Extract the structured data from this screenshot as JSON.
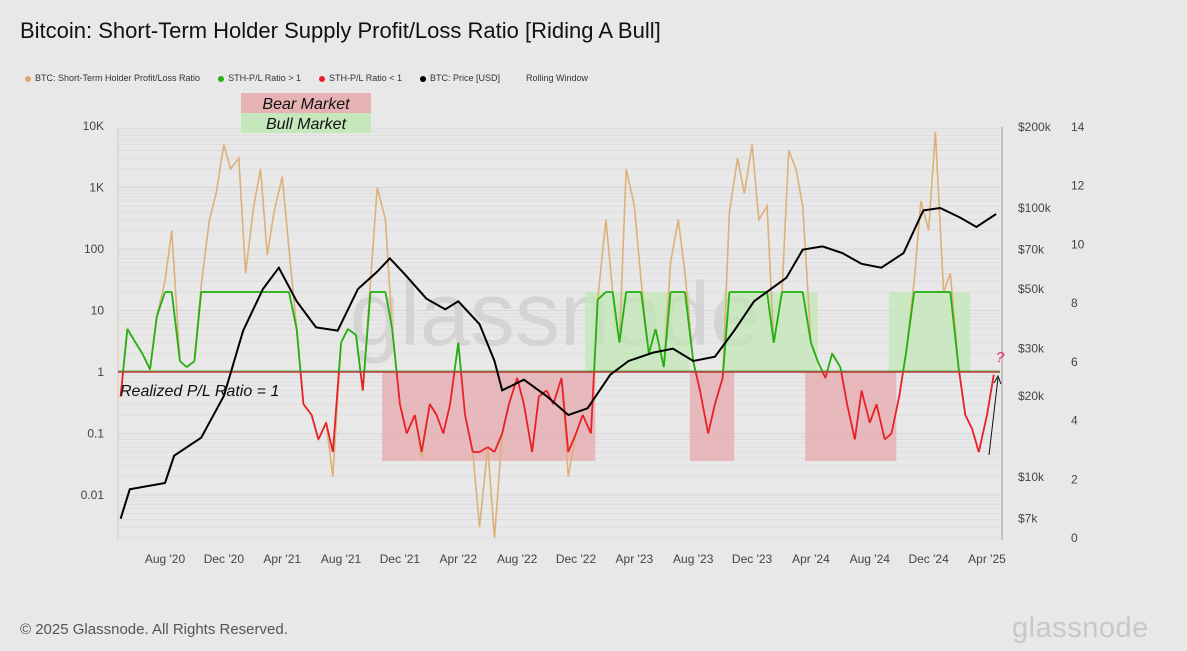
{
  "title": "Bitcoin: Short-Term Holder Supply Profit/Loss Ratio [Riding A Bull]",
  "legend": [
    {
      "label": "BTC: Short-Term Holder Profit/Loss Ratio",
      "color": "#d9a86c"
    },
    {
      "label": "STH-P/L Ratio > 1",
      "color": "#22b00f"
    },
    {
      "label": "STH-P/L Ratio < 1",
      "color": "#e8202a"
    },
    {
      "label": "BTC: Price [USD]",
      "color": "#000000"
    },
    {
      "label": "Rolling Window",
      "color": ""
    }
  ],
  "annotations": {
    "bear_label": "Bear Market",
    "bull_label": "Bull Market",
    "ratio_line_label": "Realized P/L Ratio = 1",
    "question": "?",
    "watermark": "glassnode"
  },
  "footer": "© 2025 Glassnode. All Rights Reserved.",
  "brand": "glassnode",
  "chart_data": {
    "type": "line",
    "title": "Bitcoin: Short-Term Holder Supply Profit/Loss Ratio [Riding A Bull]",
    "left_axis": {
      "scale": "log",
      "ticks": [
        "10K",
        "1K",
        "100",
        "10",
        "1",
        "0.1",
        "0.01"
      ],
      "tick_values": [
        10000,
        1000,
        100,
        10,
        1,
        0.1,
        0.01
      ]
    },
    "price_axis": {
      "scale": "log",
      "ticks": [
        "$200k",
        "$100k",
        "$70k",
        "$50k",
        "$30k",
        "$20k",
        "$10k",
        "$7k"
      ],
      "tick_values": [
        200000,
        100000,
        70000,
        50000,
        30000,
        20000,
        10000,
        7000
      ]
    },
    "right_axis": {
      "ticks": [
        "14",
        "12",
        "10",
        "8",
        "6",
        "4",
        "2",
        "0"
      ],
      "tick_values": [
        14,
        12,
        10,
        8,
        6,
        4,
        2,
        0
      ]
    },
    "x_ticks": [
      "Aug '20",
      "Dec '20",
      "Apr '21",
      "Aug '21",
      "Dec '21",
      "Apr '22",
      "Aug '22",
      "Dec '22",
      "Apr '23",
      "Aug '23",
      "Dec '23",
      "Apr '24",
      "Aug '24",
      "Dec '24",
      "Apr '25"
    ],
    "x_tick_dates": [
      "2020-08-01",
      "2020-12-01",
      "2021-04-01",
      "2021-08-01",
      "2021-12-01",
      "2022-04-01",
      "2022-08-01",
      "2022-12-01",
      "2023-04-01",
      "2023-08-01",
      "2023-12-01",
      "2024-04-01",
      "2024-08-01",
      "2024-12-01",
      "2025-04-01"
    ],
    "reference_line": {
      "value": 1,
      "label": "Realized P/L Ratio = 1"
    },
    "clip_range": [
      0.05,
      20
    ],
    "bear_periods": [
      [
        "2021-10-25",
        "2023-01-10"
      ],
      [
        "2023-07-25",
        "2023-10-25"
      ],
      [
        "2024-03-20",
        "2024-09-25"
      ]
    ],
    "bull_periods": [
      [
        "2022-12-20",
        "2023-07-25"
      ],
      [
        "2023-10-01",
        "2024-04-15"
      ],
      [
        "2024-09-10",
        "2025-02-25"
      ]
    ],
    "ratio": {
      "name": "BTC: Short-Term Holder Profit/Loss Ratio",
      "dates": [
        "2020-05-01",
        "2020-05-15",
        "2020-06-01",
        "2020-06-15",
        "2020-07-01",
        "2020-07-15",
        "2020-08-01",
        "2020-08-15",
        "2020-09-01",
        "2020-09-15",
        "2020-10-01",
        "2020-10-15",
        "2020-11-01",
        "2020-11-15",
        "2020-12-01",
        "2020-12-15",
        "2021-01-01",
        "2021-01-15",
        "2021-02-01",
        "2021-02-15",
        "2021-03-01",
        "2021-03-15",
        "2021-04-01",
        "2021-04-15",
        "2021-05-01",
        "2021-05-15",
        "2021-06-01",
        "2021-06-15",
        "2021-07-01",
        "2021-07-15",
        "2021-08-01",
        "2021-08-15",
        "2021-09-01",
        "2021-09-15",
        "2021-10-01",
        "2021-10-15",
        "2021-11-01",
        "2021-11-15",
        "2021-12-01",
        "2021-12-15",
        "2022-01-01",
        "2022-01-15",
        "2022-02-01",
        "2022-02-15",
        "2022-03-01",
        "2022-03-15",
        "2022-04-01",
        "2022-04-15",
        "2022-05-01",
        "2022-05-15",
        "2022-06-01",
        "2022-06-15",
        "2022-07-01",
        "2022-07-15",
        "2022-08-01",
        "2022-08-15",
        "2022-09-01",
        "2022-09-15",
        "2022-10-01",
        "2022-10-15",
        "2022-11-01",
        "2022-11-15",
        "2022-12-01",
        "2022-12-15",
        "2023-01-01",
        "2023-01-15",
        "2023-02-01",
        "2023-02-15",
        "2023-03-01",
        "2023-03-15",
        "2023-04-01",
        "2023-04-15",
        "2023-05-01",
        "2023-05-15",
        "2023-06-01",
        "2023-06-15",
        "2023-07-01",
        "2023-07-15",
        "2023-08-01",
        "2023-08-15",
        "2023-09-01",
        "2023-09-15",
        "2023-10-01",
        "2023-10-15",
        "2023-11-01",
        "2023-11-15",
        "2023-12-01",
        "2023-12-15",
        "2024-01-01",
        "2024-01-15",
        "2024-02-01",
        "2024-02-15",
        "2024-03-01",
        "2024-03-15",
        "2024-04-01",
        "2024-04-15",
        "2024-05-01",
        "2024-05-15",
        "2024-06-01",
        "2024-06-15",
        "2024-07-01",
        "2024-07-15",
        "2024-08-01",
        "2024-08-15",
        "2024-09-01",
        "2024-09-15",
        "2024-10-01",
        "2024-10-15",
        "2024-11-01",
        "2024-11-15",
        "2024-12-01",
        "2024-12-15",
        "2025-01-01",
        "2025-01-15",
        "2025-02-01",
        "2025-02-15",
        "2025-03-01",
        "2025-03-15",
        "2025-04-01",
        "2025-04-15"
      ],
      "values": [
        0.4,
        5,
        3,
        2,
        1.1,
        8,
        30,
        200,
        1.5,
        1.2,
        1.5,
        25,
        300,
        800,
        5000,
        2000,
        3000,
        40,
        500,
        2000,
        80,
        400,
        1500,
        100,
        5,
        0.3,
        0.2,
        0.08,
        0.15,
        0.02,
        3,
        5,
        4,
        0.5,
        30,
        1000,
        300,
        5,
        0.3,
        0.1,
        0.2,
        0.04,
        0.3,
        0.2,
        0.1,
        0.3,
        3,
        0.2,
        0.05,
        0.003,
        0.06,
        0.002,
        0.1,
        0.3,
        0.8,
        0.3,
        0.05,
        0.4,
        0.5,
        0.3,
        0.8,
        0.02,
        0.1,
        0.2,
        0.1,
        15,
        300,
        20,
        3,
        2000,
        500,
        30,
        2,
        5,
        1.2,
        60,
        300,
        40,
        1.5,
        0.5,
        0.1,
        0.3,
        0.8,
        400,
        3000,
        800,
        5000,
        300,
        500,
        3,
        20,
        4000,
        2000,
        500,
        3,
        1.5,
        0.8,
        2,
        1.2,
        0.3,
        0.08,
        0.5,
        0.15,
        0.3,
        0.08,
        0.1,
        0.4,
        2,
        30,
        600,
        200,
        8000,
        20,
        40,
        1.2,
        0.2,
        0.12,
        0.05,
        0.2,
        0.9
      ]
    },
    "price": {
      "name": "BTC: Price [USD]",
      "dates": [
        "2020-05-01",
        "2020-05-20",
        "2020-08-01",
        "2020-08-20",
        "2020-10-15",
        "2020-12-01",
        "2021-01-10",
        "2021-02-20",
        "2021-03-25",
        "2021-05-01",
        "2021-06-10",
        "2021-07-25",
        "2021-09-05",
        "2021-10-15",
        "2021-11-10",
        "2021-12-10",
        "2022-01-25",
        "2022-03-05",
        "2022-04-01",
        "2022-05-15",
        "2022-06-15",
        "2022-07-01",
        "2022-08-15",
        "2022-10-01",
        "2022-11-15",
        "2022-12-25",
        "2023-02-10",
        "2023-03-20",
        "2023-05-10",
        "2023-06-20",
        "2023-08-01",
        "2023-09-15",
        "2023-10-25",
        "2023-12-05",
        "2024-02-10",
        "2024-03-15",
        "2024-04-25",
        "2024-06-05",
        "2024-07-15",
        "2024-08-25",
        "2024-10-10",
        "2024-11-20",
        "2024-12-25",
        "2025-02-05",
        "2025-03-10",
        "2025-04-20"
      ],
      "values": [
        7000,
        9000,
        9500,
        12000,
        14000,
        20000,
        35000,
        50000,
        60000,
        45000,
        36000,
        35000,
        50000,
        58000,
        65000,
        57000,
        46000,
        42000,
        45000,
        37000,
        27000,
        21000,
        23000,
        20000,
        17000,
        18000,
        24000,
        27000,
        29000,
        30000,
        27000,
        28000,
        35000,
        45000,
        55000,
        70000,
        72000,
        68000,
        62000,
        60000,
        68000,
        98000,
        100000,
        92000,
        85000,
        95000
      ]
    }
  }
}
